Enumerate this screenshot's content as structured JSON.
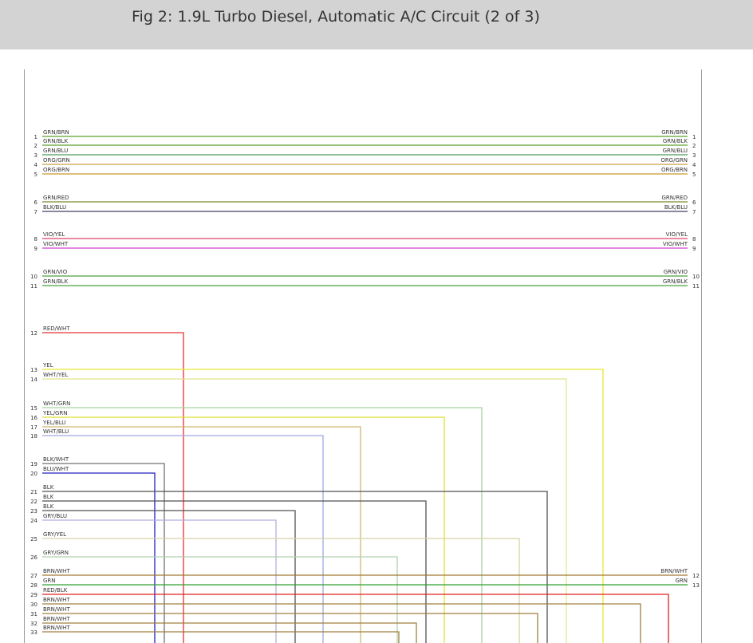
{
  "header": {
    "title": "Fig 2: 1.9L Turbo Diesel, Automatic A/C Circuit (2 of 3)"
  },
  "wires": [
    {
      "pin": "1",
      "label": "GRN/BRN",
      "color": "#5aa02c",
      "right_label": "GRN/BRN",
      "right_pin": "1"
    },
    {
      "pin": "2",
      "label": "GRN/BLK",
      "color": "#5aa02c",
      "right_label": "GRN/BLK",
      "right_pin": "2"
    },
    {
      "pin": "3",
      "label": "GRN/BLU",
      "color": "#4c9a5a",
      "right_label": "GRN/BLU",
      "right_pin": "3"
    },
    {
      "pin": "4",
      "label": "ORG/GRN",
      "color": "#c8a040",
      "right_label": "ORG/GRN",
      "right_pin": "4"
    },
    {
      "pin": "5",
      "label": "ORG/BRN",
      "color": "#c89a30",
      "right_label": "ORG/BRN",
      "right_pin": "5"
    },
    {
      "pin": "6",
      "label": "GRN/RED",
      "color": "#7a8a2a",
      "right_label": "GRN/RED",
      "right_pin": "6"
    },
    {
      "pin": "7",
      "label": "BLK/BLU",
      "color": "#404060",
      "right_label": "BLK/BLU",
      "right_pin": "7"
    },
    {
      "pin": "8",
      "label": "VIO/YEL",
      "color": "#e0406a",
      "right_label": "VIO/YEL",
      "right_pin": "8"
    },
    {
      "pin": "9",
      "label": "VIO/WHT",
      "color": "#d040d0",
      "right_label": "VIO/WHT",
      "right_pin": "9"
    },
    {
      "pin": "10",
      "label": "GRN/VIO",
      "color": "#4aa040",
      "right_label": "GRN/VIO",
      "right_pin": "10"
    },
    {
      "pin": "11",
      "label": "GRN/BLK",
      "color": "#4aa040",
      "right_label": "GRN/BLK",
      "right_pin": "11"
    },
    {
      "pin": "12",
      "label": "RED/WHT",
      "color": "#e83030"
    },
    {
      "pin": "13",
      "label": "YEL",
      "color": "#e8e830"
    },
    {
      "pin": "14",
      "label": "WHT/YEL",
      "color": "#e4e490"
    },
    {
      "pin": "15",
      "label": "WHT/GRN",
      "color": "#a8d4a0"
    },
    {
      "pin": "16",
      "label": "YEL/GRN",
      "color": "#e0e030"
    },
    {
      "pin": "17",
      "label": "YEL/BLU",
      "color": "#d0b870"
    },
    {
      "pin": "18",
      "label": "WHT/BLU",
      "color": "#a0a8e0"
    },
    {
      "pin": "19",
      "label": "BLK/WHT",
      "color": "#707070"
    },
    {
      "pin": "20",
      "label": "BLU/WHT",
      "color": "#2020c0"
    },
    {
      "pin": "21",
      "label": "BLK",
      "color": "#505050"
    },
    {
      "pin": "22",
      "label": "BLK",
      "color": "#505050"
    },
    {
      "pin": "23",
      "label": "BLK",
      "color": "#505050"
    },
    {
      "pin": "24",
      "label": "GRY/BLU",
      "color": "#b0b0e0"
    },
    {
      "pin": "25",
      "label": "GRY/YEL",
      "color": "#d8d4a0"
    },
    {
      "pin": "26",
      "label": "GRY/GRN",
      "color": "#b0d0b0"
    },
    {
      "pin": "27",
      "label": "BRN/WHT",
      "color": "#a07a30",
      "right_label": "BRN/WHT",
      "right_pin": "12"
    },
    {
      "pin": "28",
      "label": "GRN",
      "color": "#30a030",
      "right_label": "GRN",
      "right_pin": "13"
    },
    {
      "pin": "29",
      "label": "RED/BLK",
      "color": "#e02020"
    },
    {
      "pin": "30",
      "label": "BRN/WHT",
      "color": "#a08040"
    },
    {
      "pin": "31",
      "label": "BRN/WHT",
      "color": "#a08040"
    },
    {
      "pin": "32",
      "label": "BRN/WHT",
      "color": "#a08040"
    },
    {
      "pin": "33",
      "label": "BRN/WHT",
      "color": "#a08040"
    }
  ]
}
